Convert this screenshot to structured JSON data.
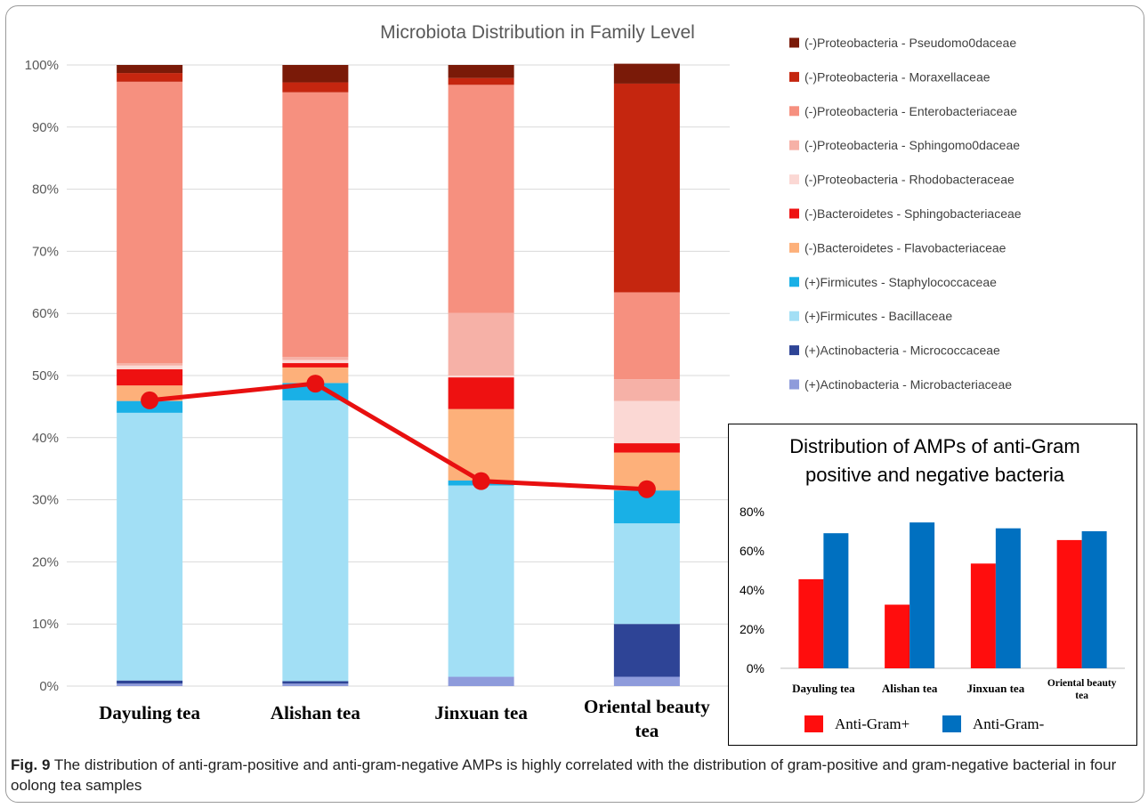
{
  "chart_data": [
    {
      "type": "bar",
      "stacked": true,
      "title": "Microbiota Distribution in Family Level",
      "categories": [
        "Dayuling tea",
        "Alishan tea",
        "Jinxuan tea",
        "Oriental beauty tea"
      ],
      "y_tick_labels": [
        "0%",
        "10%",
        "20%",
        "30%",
        "40%",
        "50%",
        "60%",
        "70%",
        "80%",
        "90%",
        "100%"
      ],
      "ylim": [
        0,
        100
      ],
      "grid": true,
      "legend_position": "right",
      "series": [
        {
          "name": "(+)Actinobacteria - Microbacteriaceae",
          "color": "#8e9bdb",
          "values": [
            0.4,
            0.4,
            1.5,
            1.5
          ]
        },
        {
          "name": "(+)Actinobacteria - Micrococcaceae",
          "color": "#2e4496",
          "values": [
            0.5,
            0.4,
            0,
            8.5
          ]
        },
        {
          "name": "(+)Firmicutes - Bacillaceae",
          "color": "#a2dff5",
          "values": [
            43.1,
            45.2,
            30.8,
            16.2
          ]
        },
        {
          "name": "(+)Firmicutes - Staphylococcaceae",
          "color": "#19b0e6",
          "values": [
            1.9,
            2.8,
            0.8,
            5.3
          ]
        },
        {
          "name": "(-)Bacteroidetes - Flavobacteriaceae",
          "color": "#fdb07a",
          "values": [
            2.5,
            2.5,
            11.5,
            6.1
          ]
        },
        {
          "name": "(-)Bacteroidetes - Sphingobacteriaceae",
          "color": "#ee1111",
          "values": [
            2.6,
            0.7,
            5.1,
            1.5
          ]
        },
        {
          "name": "(-)Proteobacteria - Rhodobacteraceae",
          "color": "#fbd8d4",
          "values": [
            0.6,
            0.5,
            0.3,
            6.8
          ]
        },
        {
          "name": "(-)Proteobacteria - Sphingomo0daceae",
          "color": "#f6b1a7",
          "values": [
            0.4,
            0.5,
            10.1,
            3.5
          ]
        },
        {
          "name": "(-)Proteobacteria - Enterobacteriaceae",
          "color": "#f6907f",
          "values": [
            45.3,
            42.6,
            36.7,
            14.0
          ]
        },
        {
          "name": "(-)Proteobacteria - Moraxellaceae",
          "color": "#c5260f",
          "values": [
            1.4,
            1.6,
            1.1,
            33.6
          ]
        },
        {
          "name": "(-)Proteobacteria - Pseudomo0daceae",
          "color": "#7a1a08",
          "values": [
            1.3,
            2.8,
            2.1,
            3.2
          ]
        }
      ],
      "overlay_line": {
        "color": "#e81010",
        "values": [
          46.0,
          48.7,
          33.0,
          31.7
        ]
      }
    },
    {
      "type": "bar",
      "title": "Distribution of AMPs of anti-Gram positive and negative bacteria",
      "title_lines": [
        "Distribution of AMPs of anti-Gram",
        "positive and negative bacteria"
      ],
      "categories": [
        "Dayuling tea",
        "Alishan tea",
        "Jinxuan tea",
        "Oriental beauty tea"
      ],
      "category_lines": [
        [
          "Dayuling tea"
        ],
        [
          "Alishan tea"
        ],
        [
          "Jinxuan tea"
        ],
        [
          "Oriental beauty",
          "tea"
        ]
      ],
      "y_tick_labels": [
        "0%",
        "20%",
        "40%",
        "60%",
        "80%"
      ],
      "ylim": [
        0,
        80
      ],
      "grid": false,
      "legend_position": "bottom",
      "series": [
        {
          "name": "Anti-Gram+",
          "color": "#ff0d0d",
          "values": [
            45.5,
            32.5,
            53.5,
            65.5
          ]
        },
        {
          "name": "Anti-Gram-",
          "color": "#0070c0",
          "values": [
            69,
            74.5,
            71.5,
            70
          ]
        }
      ]
    }
  ],
  "caption": {
    "label": "Fig. 9",
    "text": " The distribution of anti-gram-positive and anti-gram-negative AMPs is highly correlated with the distribution of gram-positive and gram-negative bacterial in four oolong tea samples"
  }
}
